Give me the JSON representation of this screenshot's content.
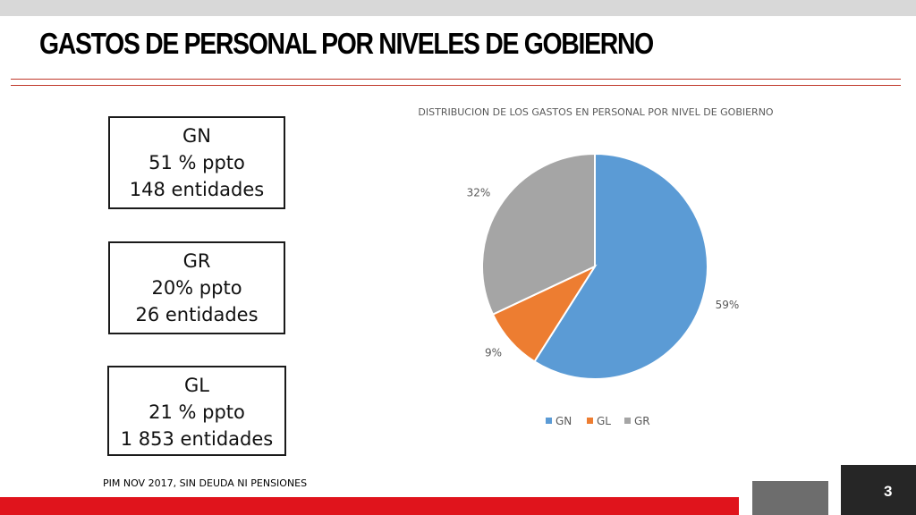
{
  "title": "GASTOS DE PERSONAL POR NIVELES DE GOBIERNO",
  "boxes": [
    {
      "line1": "GN",
      "line2": "51 % ppto",
      "line3": "148 entidades"
    },
    {
      "line1": "GR",
      "line2": "20% ppto",
      "line3": "26 entidades"
    },
    {
      "line1": "GL",
      "line2": "21 % ppto",
      "line3": "1 853  entidades"
    }
  ],
  "footnote": "PIM NOV 2017, SIN DEUDA NI PENSIONES",
  "page_number": "3",
  "chart_data": {
    "type": "pie",
    "title": "DISTRIBUCION DE LOS GASTOS EN PERSONAL POR NIVEL DE GOBIERNO",
    "categories": [
      "GN",
      "GL",
      "GR"
    ],
    "values": [
      59,
      9,
      32
    ],
    "labels": [
      "59%",
      "9%",
      "32%"
    ],
    "colors": [
      "#5b9bd5",
      "#ed7d31",
      "#a5a5a5"
    ],
    "legend": "bottom"
  }
}
